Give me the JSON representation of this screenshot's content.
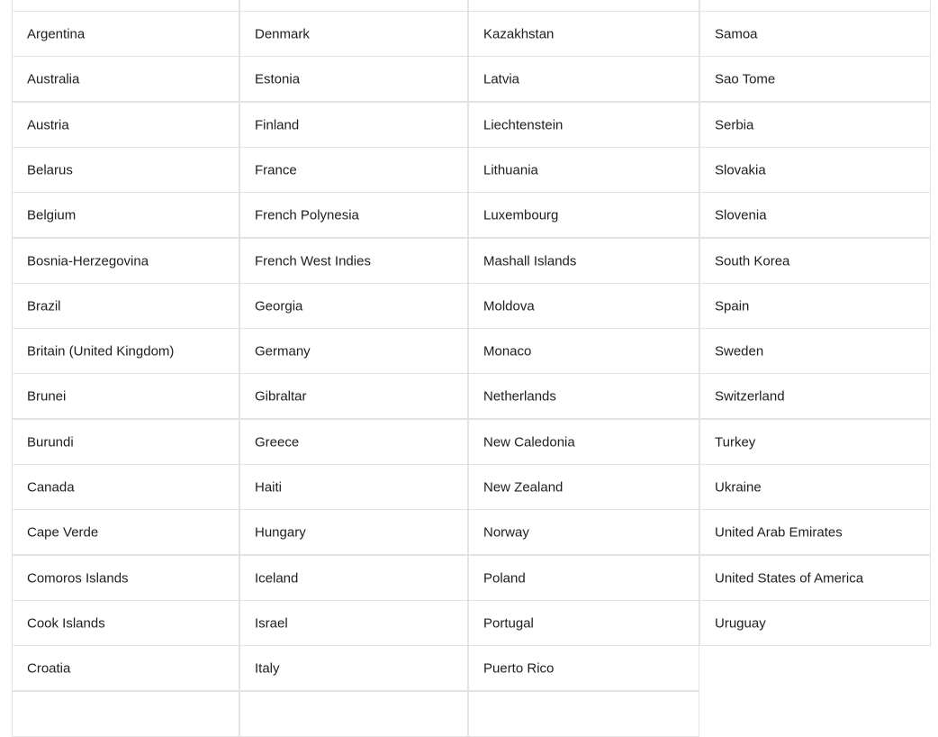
{
  "countries": {
    "columns": [
      [
        "Argentina",
        "Australia",
        "Austria",
        "Belarus",
        "Belgium",
        "Bosnia-Herzegovina",
        "Brazil",
        "Britain (United Kingdom)",
        "Brunei",
        "Burundi",
        "Canada",
        "Cape Verde",
        "Comoros Islands",
        "Cook Islands",
        "Croatia"
      ],
      [
        "Denmark",
        "Estonia",
        "Finland",
        "France",
        "French Polynesia",
        "French West Indies",
        "Georgia",
        "Germany",
        "Gibraltar",
        "Greece",
        "Haiti",
        "Hungary",
        "Iceland",
        "Israel",
        "Italy"
      ],
      [
        "Kazakhstan",
        "Latvia",
        "Liechtenstein",
        "Lithuania",
        "Luxembourg",
        "Mashall Islands",
        "Moldova",
        "Monaco",
        "Netherlands",
        "New Caledonia",
        "New Zealand",
        "Norway",
        "Poland",
        "Portugal",
        "Puerto Rico"
      ],
      [
        "Samoa",
        "Sao Tome",
        "Serbia",
        "Slovakia",
        "Slovenia",
        "South Korea",
        "Spain",
        "Sweden",
        "Switzerland",
        "Turkey",
        "Ukraine",
        "United Arab Emirates",
        "United States of America",
        "Uruguay"
      ]
    ]
  }
}
